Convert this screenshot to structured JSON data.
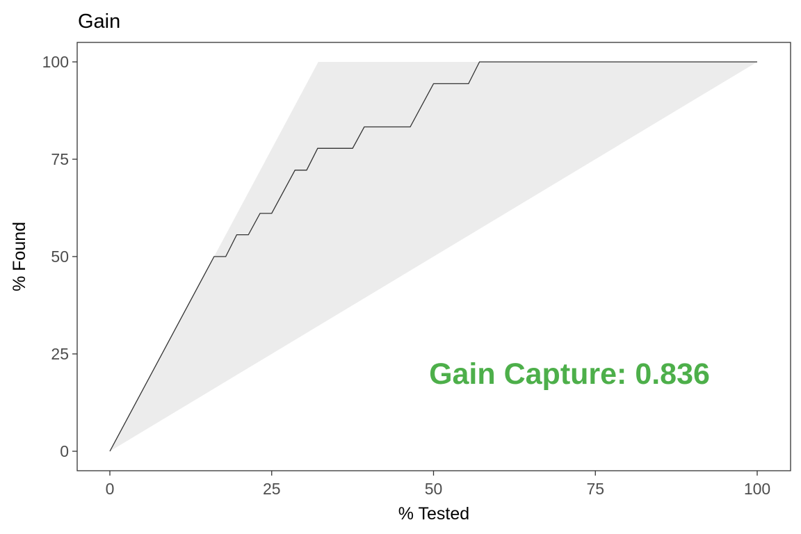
{
  "chart_data": {
    "type": "line",
    "title": "Gain",
    "xlabel": "% Tested",
    "ylabel": "% Found",
    "xlim": [
      0,
      100
    ],
    "ylim": [
      0,
      100
    ],
    "x_ticks": [
      0,
      25,
      50,
      75,
      100
    ],
    "y_ticks": [
      0,
      25,
      50,
      75,
      100
    ],
    "x_tick_labels": [
      "0",
      "25",
      "50",
      "75",
      "100"
    ],
    "y_tick_labels": [
      "0",
      "25",
      "50",
      "75",
      "100"
    ],
    "grid": false,
    "legend": "none",
    "shaded_region": {
      "color": "#ececec",
      "upper_boundary": {
        "x": [
          0,
          32.2,
          100
        ],
        "y": [
          0,
          100,
          100
        ]
      },
      "lower_boundary": {
        "x": [
          0,
          100
        ],
        "y": [
          0,
          100
        ]
      }
    },
    "series": [
      {
        "color": "#333333",
        "x": [
          0,
          16.1,
          17.9,
          19.6,
          21.4,
          23.2,
          25.0,
          28.6,
          30.4,
          32.1,
          37.5,
          39.3,
          46.4,
          50.0,
          55.4,
          57.1,
          100
        ],
        "y": [
          0,
          50.0,
          50.0,
          55.6,
          55.6,
          61.1,
          61.1,
          72.2,
          72.2,
          77.8,
          77.8,
          83.3,
          83.3,
          94.4,
          94.4,
          100,
          100
        ]
      }
    ],
    "annotations": [
      {
        "text": "Gain Capture: 0.836",
        "x": 71,
        "y": 20,
        "color": "#4daf4a"
      }
    ]
  }
}
